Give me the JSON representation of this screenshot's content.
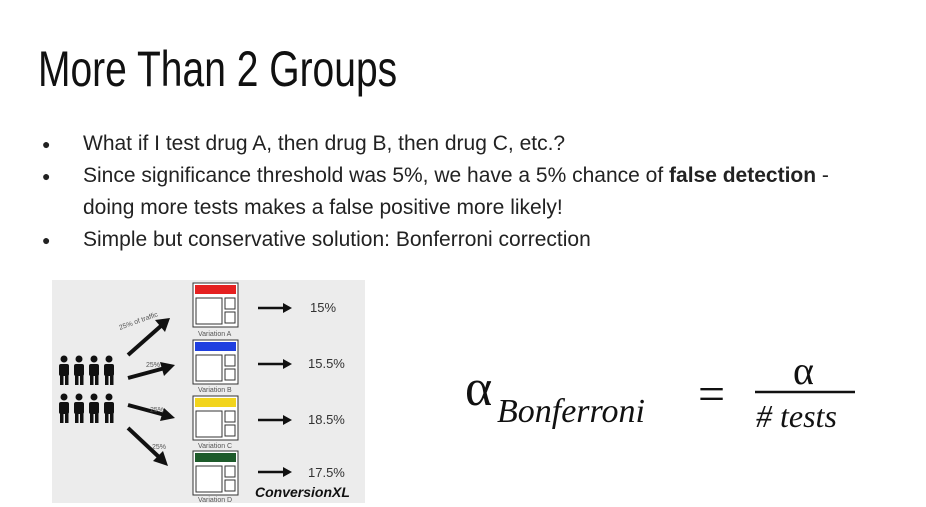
{
  "title": "More Than 2 Groups",
  "bullets": [
    [
      "What if I test drug A, then drug B, then drug C, etc.?"
    ],
    [
      "Since significance threshold was 5%, we have a 5% chance of ",
      "false detection",
      " - doing more tests makes a false positive more likely!"
    ],
    [
      "Simple but conservative solution: Bonferroni correction"
    ]
  ],
  "figure": {
    "traffic_labels": [
      "25% of traffic",
      "25%",
      "25%",
      "25%"
    ],
    "variations": [
      "Variation A",
      "Variation B",
      "Variation C",
      "Variation D"
    ],
    "rates": [
      "15%",
      "15.5%",
      "18.5%",
      "17.5%"
    ],
    "brand": "ConversionXL"
  },
  "formula": {
    "alpha": "α",
    "subscript": "Bonferroni",
    "equals": "=",
    "numerator": "α",
    "denominator": "# tests"
  }
}
